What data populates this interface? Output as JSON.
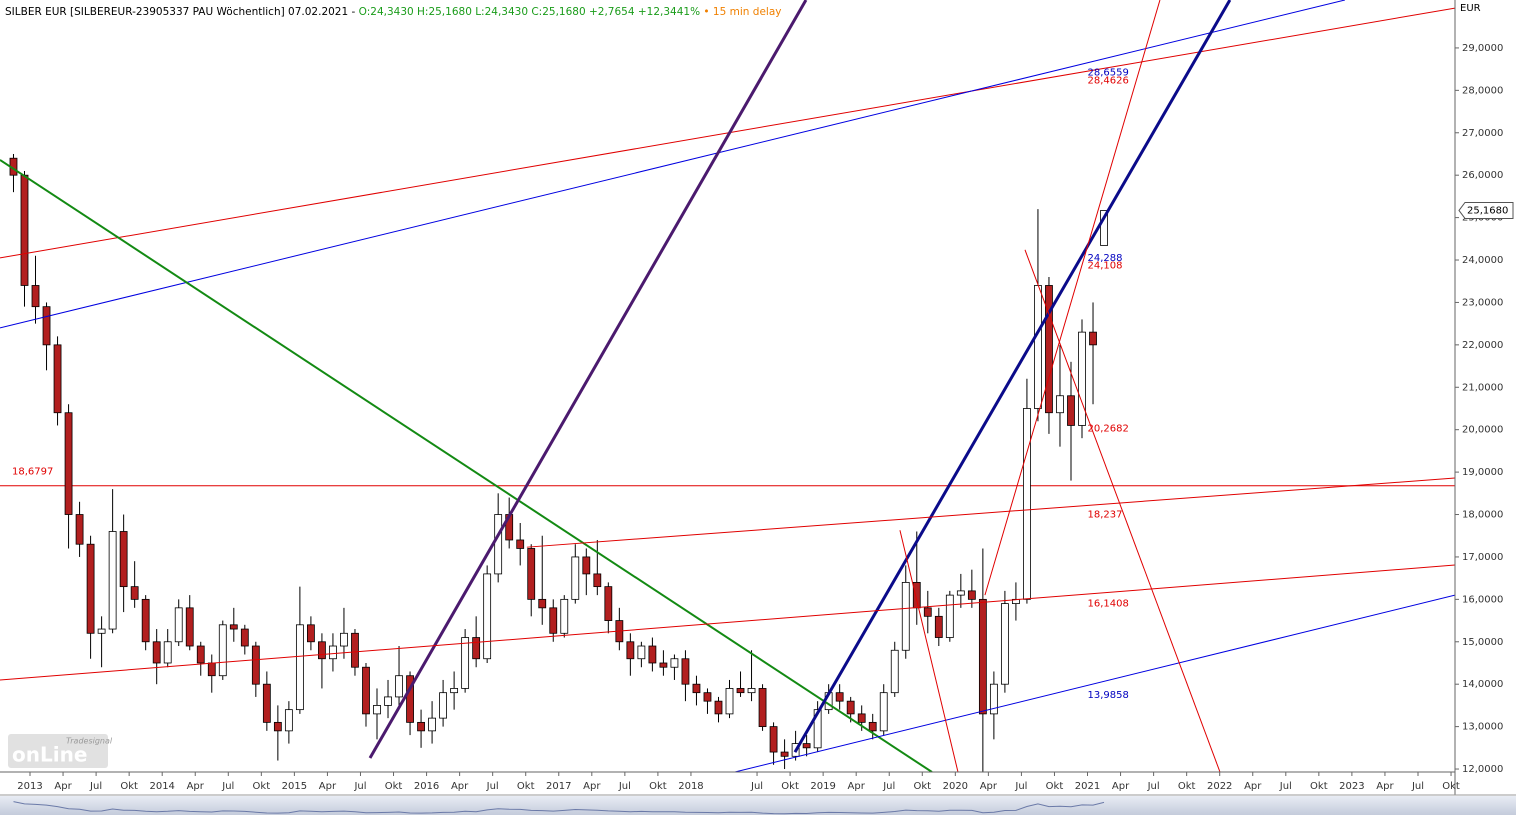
{
  "chart_data": {
    "type": "candlestick",
    "title": "SILBER EUR [SILBEREUR-23905337 PAU Wöchentlich] 07.02.2021 -",
    "quote": "O:24,3430 H:25,1680 L:24,3430 C:25,1680 +2,7654 +12,3441%",
    "delay": "• 15 min delay",
    "title_color": "#000000",
    "quote_color": "#1a9c1a",
    "delay_color": "#f08000",
    "y_unit": "EUR",
    "logo_small": "Tradesignal",
    "logo_big": "onLine",
    "up_color": "#ffffff",
    "down_color": "#b21f1f",
    "last_price": {
      "value": 25.168,
      "label": "25,1680"
    },
    "x": [
      "2012-11",
      "2012-12",
      "2013-01",
      "2013-02",
      "2013-03",
      "2013-04",
      "2013-05",
      "2013-06",
      "2013-07",
      "2013-08",
      "2013-09",
      "2013-10",
      "2013-11",
      "2013-12",
      "2014-01",
      "2014-02",
      "2014-03",
      "2014-04",
      "2014-05",
      "2014-06",
      "2014-07",
      "2014-08",
      "2014-09",
      "2014-10",
      "2014-11",
      "2014-12",
      "2015-01",
      "2015-02",
      "2015-03",
      "2015-04",
      "2015-05",
      "2015-06",
      "2015-07",
      "2015-08",
      "2015-09",
      "2015-10",
      "2015-11",
      "2015-12",
      "2016-01",
      "2016-02",
      "2016-03",
      "2016-04",
      "2016-05",
      "2016-06",
      "2016-07",
      "2016-08",
      "2016-09",
      "2016-10",
      "2016-11",
      "2016-12",
      "2017-01",
      "2017-02",
      "2017-03",
      "2017-04",
      "2017-05",
      "2017-06",
      "2017-07",
      "2017-08",
      "2017-09",
      "2017-10",
      "2017-11",
      "2017-12",
      "2018-01",
      "2018-02",
      "2018-03",
      "2018-04",
      "2018-05",
      "2018-06",
      "2018-07",
      "2018-08",
      "2018-09",
      "2018-10",
      "2018-11",
      "2018-12",
      "2019-01",
      "2019-02",
      "2019-03",
      "2019-04",
      "2019-05",
      "2019-06",
      "2019-07",
      "2019-08",
      "2019-09",
      "2019-10",
      "2019-11",
      "2019-12",
      "2020-01",
      "2020-02",
      "2020-03",
      "2020-04",
      "2020-05",
      "2020-06",
      "2020-07",
      "2020-08",
      "2020-09",
      "2020-10",
      "2020-11",
      "2020-12",
      "2021-01",
      "2021-02"
    ],
    "open": [
      26.4,
      26.0,
      23.4,
      22.9,
      22.0,
      20.4,
      18.0,
      17.3,
      15.2,
      15.3,
      17.6,
      16.3,
      16.0,
      15.0,
      14.5,
      15.0,
      15.8,
      14.9,
      14.5,
      14.2,
      15.4,
      15.3,
      14.9,
      14.0,
      13.1,
      12.9,
      13.4,
      15.4,
      15.0,
      14.6,
      14.9,
      15.2,
      14.4,
      13.3,
      13.5,
      13.7,
      14.2,
      13.1,
      12.9,
      13.2,
      13.8,
      13.9,
      15.1,
      14.6,
      16.6,
      18.0,
      17.4,
      17.2,
      16.0,
      15.8,
      15.2,
      16.0,
      17.0,
      16.6,
      16.3,
      15.5,
      15.0,
      14.6,
      14.9,
      14.5,
      14.4,
      14.6,
      14.0,
      13.8,
      13.6,
      13.3,
      13.9,
      13.8,
      13.9,
      13.0,
      12.4,
      12.3,
      12.6,
      12.5,
      13.4,
      13.8,
      13.6,
      13.3,
      13.1,
      12.9,
      13.8,
      14.8,
      16.4,
      15.8,
      15.6,
      15.1,
      16.1,
      16.2,
      16.0,
      13.3,
      14.0,
      15.9,
      16.0,
      20.5,
      23.4,
      20.4,
      20.8,
      20.1,
      22.3,
      24.343
    ],
    "high": [
      26.5,
      26.1,
      24.1,
      23.0,
      22.2,
      20.6,
      18.3,
      17.5,
      15.6,
      18.6,
      18.0,
      16.9,
      16.1,
      15.3,
      15.3,
      16.0,
      16.1,
      15.0,
      14.7,
      15.5,
      15.8,
      15.4,
      15.0,
      14.3,
      13.5,
      13.6,
      16.3,
      15.6,
      15.2,
      15.2,
      15.8,
      15.3,
      14.5,
      13.9,
      14.1,
      14.9,
      14.3,
      13.4,
      13.6,
      14.1,
      14.3,
      15.3,
      15.6,
      16.8,
      18.5,
      18.4,
      17.8,
      17.3,
      17.5,
      16.0,
      16.1,
      17.3,
      17.2,
      17.4,
      16.4,
      15.8,
      15.2,
      15.0,
      15.1,
      14.8,
      14.7,
      14.8,
      14.2,
      13.9,
      13.7,
      14.1,
      14.3,
      14.8,
      14.0,
      13.1,
      12.7,
      12.9,
      12.8,
      13.6,
      14.0,
      14.0,
      13.7,
      13.5,
      13.3,
      14.0,
      15.0,
      16.8,
      17.6,
      16.2,
      15.8,
      16.2,
      16.6,
      16.7,
      17.2,
      14.3,
      16.2,
      16.4,
      21.2,
      25.2,
      23.6,
      22.0,
      21.6,
      22.6,
      23.0,
      25.168
    ],
    "low": [
      25.6,
      22.9,
      22.5,
      21.4,
      20.1,
      17.2,
      17.0,
      14.6,
      14.4,
      15.2,
      15.7,
      15.8,
      14.8,
      14.0,
      14.4,
      14.9,
      14.8,
      14.2,
      13.8,
      14.1,
      15.0,
      14.7,
      13.7,
      12.9,
      12.2,
      12.6,
      13.3,
      14.8,
      13.9,
      14.3,
      14.6,
      14.2,
      13.0,
      12.7,
      13.2,
      13.5,
      12.8,
      12.5,
      12.6,
      13.0,
      13.4,
      13.8,
      14.4,
      14.5,
      16.4,
      17.2,
      16.8,
      15.6,
      15.4,
      15.0,
      15.1,
      15.9,
      16.1,
      16.1,
      15.2,
      14.8,
      14.2,
      14.4,
      14.3,
      14.2,
      14.1,
      13.6,
      13.5,
      13.3,
      13.1,
      13.2,
      13.7,
      13.6,
      12.9,
      12.1,
      12.0,
      12.2,
      12.3,
      12.4,
      13.3,
      13.4,
      13.1,
      12.9,
      12.7,
      12.8,
      13.7,
      14.6,
      15.4,
      15.2,
      14.9,
      15.0,
      15.8,
      15.8,
      11.9,
      12.7,
      13.8,
      15.5,
      15.9,
      20.2,
      19.9,
      19.6,
      18.8,
      19.8,
      20.6,
      24.343
    ],
    "close": [
      26.0,
      23.4,
      22.9,
      22.0,
      20.4,
      18.0,
      17.3,
      15.2,
      15.3,
      17.6,
      16.3,
      16.0,
      15.0,
      14.5,
      15.0,
      15.8,
      14.9,
      14.5,
      14.2,
      15.4,
      15.3,
      14.9,
      14.0,
      13.1,
      12.9,
      13.4,
      15.4,
      15.0,
      14.6,
      14.9,
      15.2,
      14.4,
      13.3,
      13.5,
      13.7,
      14.2,
      13.1,
      12.9,
      13.2,
      13.8,
      13.9,
      15.1,
      14.6,
      16.6,
      18.0,
      17.4,
      17.2,
      16.0,
      15.8,
      15.2,
      16.0,
      17.0,
      16.6,
      16.3,
      15.5,
      15.0,
      14.6,
      14.9,
      14.5,
      14.4,
      14.6,
      14.0,
      13.8,
      13.6,
      13.3,
      13.9,
      13.8,
      13.9,
      13.0,
      12.4,
      12.3,
      12.6,
      12.5,
      13.4,
      13.8,
      13.6,
      13.3,
      13.1,
      12.9,
      13.8,
      14.8,
      16.4,
      15.8,
      15.6,
      15.1,
      16.1,
      16.2,
      16.0,
      13.3,
      14.0,
      15.9,
      16.0,
      20.5,
      23.4,
      20.4,
      20.8,
      20.1,
      22.3,
      22.0,
      25.168
    ],
    "trendlines": [
      {
        "x1": 2012.773,
        "y1": 24.05,
        "x2": 2023.78,
        "y2": 29.94,
        "color": "#e00000",
        "width": 1
      },
      {
        "x1": 2012.773,
        "y1": 22.4,
        "x2": 2022.947,
        "y2": 30.13,
        "color": "#0000e0",
        "width": 1
      },
      {
        "x1": 2012.773,
        "y1": 26.36,
        "x2": 2019.823,
        "y2": 11.93,
        "color": "#138a13",
        "width": 2
      },
      {
        "x1": 2015.572,
        "y1": 12.26,
        "x2": 2018.87,
        "y2": 30.13,
        "color": "#4b1a6e",
        "width": 3
      },
      {
        "x1": 2018.787,
        "y1": 12.4,
        "x2": 2022.077,
        "y2": 30.13,
        "color": "#0b0b8a",
        "width": 3
      },
      {
        "x1": 2012.773,
        "y1": 14.1,
        "x2": 2023.78,
        "y2": 16.81,
        "color": "#e00000",
        "width": 1
      },
      {
        "x1": 2016.759,
        "y1": 17.23,
        "x2": 2023.78,
        "y2": 18.86,
        "color": "#e00000",
        "width": 1
      },
      {
        "x1": 2018.333,
        "y1": 11.93,
        "x2": 2023.78,
        "y2": 16.1,
        "color": "#0000e0",
        "width": 1
      },
      {
        "x1": 2020.224,
        "y1": 16.1,
        "x2": 2021.548,
        "y2": 30.13,
        "color": "#e00000",
        "width": 1
      },
      {
        "x1": 2020.527,
        "y1": 24.24,
        "x2": 2022.002,
        "y2": 11.93,
        "color": "#e00000",
        "width": 1
      },
      {
        "x1": 2019.581,
        "y1": 17.63,
        "x2": 2020.02,
        "y2": 11.93,
        "color": "#e00000",
        "width": 1
      }
    ],
    "hlines": [
      {
        "value": 18.6797,
        "label": "18,6797",
        "color": "#e00000"
      }
    ],
    "level_labels": [
      {
        "value": 28.6559,
        "label": "28,6559",
        "color": "#0000c0"
      },
      {
        "value": 28.4626,
        "label": "28,4626",
        "color": "#e00000"
      },
      {
        "value": 24.288,
        "label": "24,288",
        "color": "#0000c0"
      },
      {
        "value": 24.108,
        "label": "24,108",
        "color": "#e00000"
      },
      {
        "value": 20.2682,
        "label": "20,2682",
        "color": "#e00000"
      },
      {
        "value": 18.237,
        "label": "18,237",
        "color": "#e00000"
      },
      {
        "value": 16.1408,
        "label": "16,1408",
        "color": "#e00000"
      },
      {
        "value": 13.9858,
        "label": "13,9858",
        "color": "#0000c0"
      }
    ],
    "xlim": [
      2012.773,
      2023.78
    ],
    "ylim": [
      11.93,
      30.13
    ],
    "yticks": [
      {
        "value": 12,
        "label": "12,0000"
      },
      {
        "value": 13,
        "label": "13,0000"
      },
      {
        "value": 14,
        "label": "14,0000"
      },
      {
        "value": 15,
        "label": "15,0000"
      },
      {
        "value": 16,
        "label": "16,0000"
      },
      {
        "value": 17,
        "label": "17,0000"
      },
      {
        "value": 18,
        "label": "18,0000"
      },
      {
        "value": 19,
        "label": "19,0000"
      },
      {
        "value": 20,
        "label": "20,0000"
      },
      {
        "value": 21,
        "label": "21,0000"
      },
      {
        "value": 22,
        "label": "22,0000"
      },
      {
        "value": 23,
        "label": "23,0000"
      },
      {
        "value": 24,
        "label": "24,0000"
      },
      {
        "value": 25,
        "label": "25,0000"
      },
      {
        "value": 26,
        "label": "26,0000"
      },
      {
        "value": 27,
        "label": "27,0000"
      },
      {
        "value": 28,
        "label": "28,0000"
      },
      {
        "value": 29,
        "label": "29,0000"
      }
    ],
    "xticks": [
      2013,
      {
        "value": 2013.25,
        "label": "Apr"
      },
      {
        "value": 2013.5,
        "label": "Jul"
      },
      {
        "value": 2013.75,
        "label": "Okt"
      },
      2014,
      {
        "value": 2014.25,
        "label": "Apr"
      },
      {
        "value": 2014.5,
        "label": "Jul"
      },
      {
        "value": 2014.75,
        "label": "Okt"
      },
      2015,
      {
        "value": 2015.25,
        "label": "Apr"
      },
      {
        "value": 2015.5,
        "label": "Jul"
      },
      {
        "value": 2015.75,
        "label": "Okt"
      },
      2016,
      {
        "value": 2016.25,
        "label": "Apr"
      },
      {
        "value": 2016.5,
        "label": "Jul"
      },
      {
        "value": 2016.75,
        "label": "Okt"
      },
      2017,
      {
        "value": 2017.25,
        "label": "Apr"
      },
      {
        "value": 2017.5,
        "label": "Jul"
      },
      {
        "value": 2017.75,
        "label": "Okt"
      },
      2018,
      {
        "value": 2018.5,
        "label": "Jul"
      },
      {
        "value": 2018.75,
        "label": "Okt"
      },
      2019,
      {
        "value": 2019.25,
        "label": "Apr"
      },
      {
        "value": 2019.5,
        "label": "Jul"
      },
      {
        "value": 2019.75,
        "label": "Okt"
      },
      2020,
      {
        "value": 2020.25,
        "label": "Apr"
      },
      {
        "value": 2020.5,
        "label": "Jul"
      },
      {
        "value": 2020.75,
        "label": "Okt"
      },
      2021,
      {
        "value": 2021.25,
        "label": "Apr"
      },
      {
        "value": 2021.5,
        "label": "Jul"
      },
      {
        "value": 2021.75,
        "label": "Okt"
      },
      2022,
      {
        "value": 2022.25,
        "label": "Apr"
      },
      {
        "value": 2022.5,
        "label": "Jul"
      },
      {
        "value": 2022.75,
        "label": "Okt"
      },
      2023,
      {
        "value": 2023.25,
        "label": "Apr"
      },
      {
        "value": 2023.5,
        "label": "Jul"
      },
      {
        "value": 2023.75,
        "label": "Okt"
      }
    ]
  }
}
